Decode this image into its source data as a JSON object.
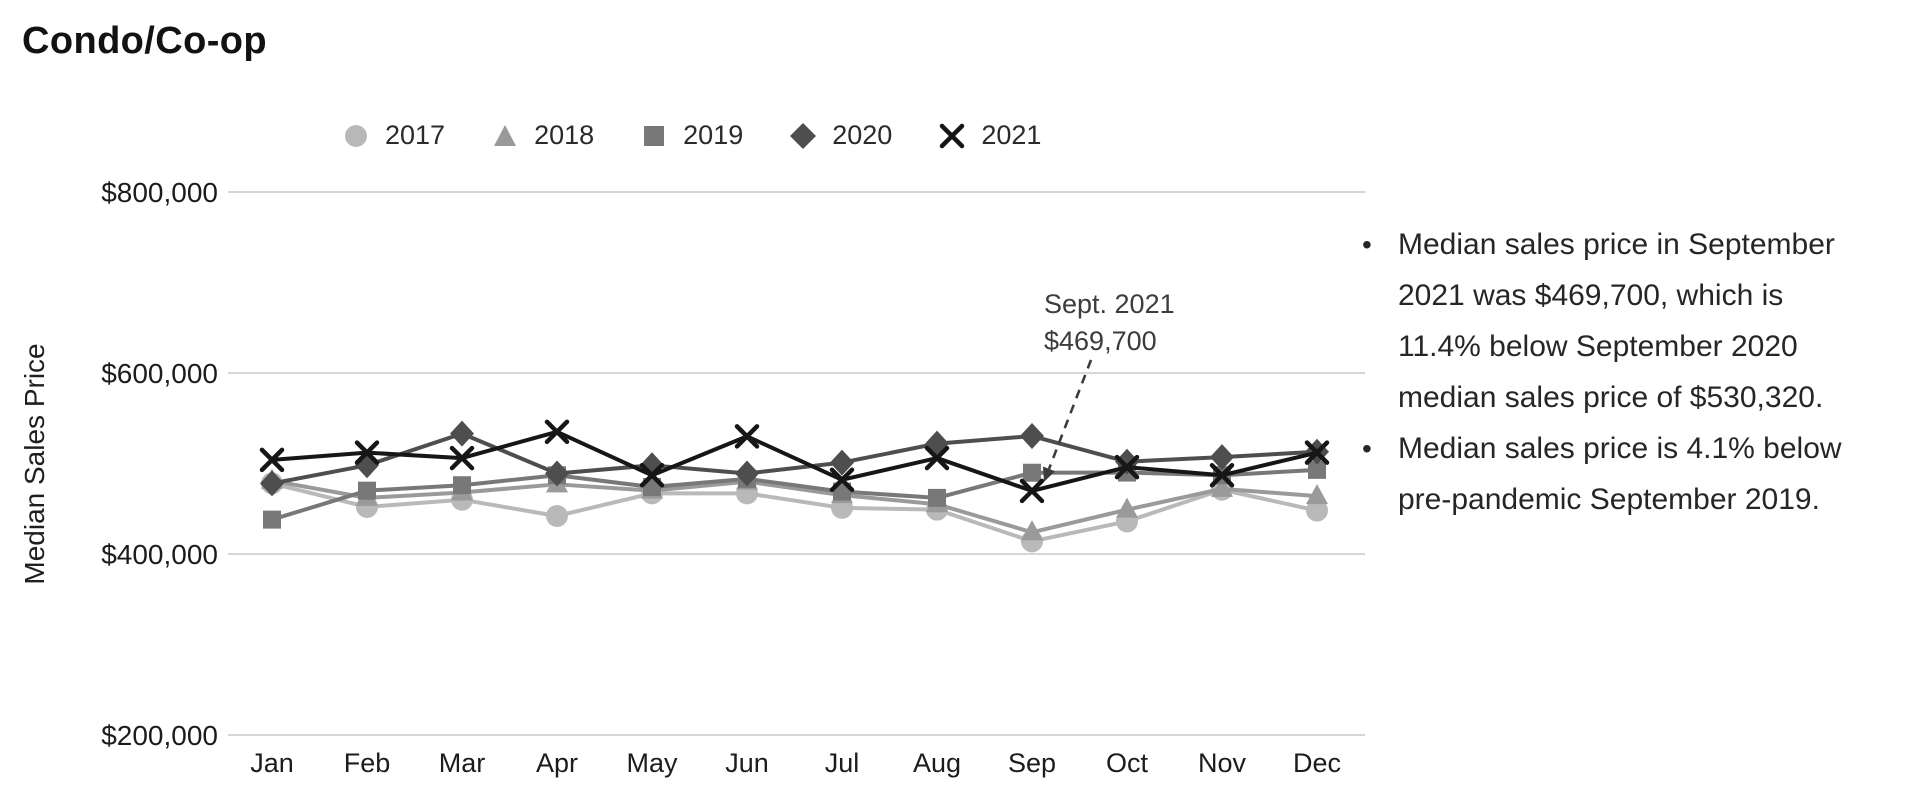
{
  "title": "Condo/Co-op",
  "legend": {
    "items": [
      {
        "label": "2017",
        "marker": "circle",
        "color": "#b9b9b9"
      },
      {
        "label": "2018",
        "marker": "triangle",
        "color": "#9a9a9a"
      },
      {
        "label": "2019",
        "marker": "square",
        "color": "#787878"
      },
      {
        "label": "2020",
        "marker": "diamond",
        "color": "#4e4e4e"
      },
      {
        "label": "2021",
        "marker": "x",
        "color": "#161616"
      }
    ]
  },
  "chart_data": {
    "type": "line",
    "title": "Condo/Co-op",
    "xlabel": "",
    "ylabel": "Median Sales Price",
    "x_categories": [
      "Jan",
      "Feb",
      "Mar",
      "Apr",
      "May",
      "Jun",
      "Jul",
      "Aug",
      "Sep",
      "Oct",
      "Nov",
      "Dec"
    ],
    "ylim": [
      200000,
      800000
    ],
    "grid": true,
    "legend_position": "top",
    "yticks": [
      {
        "value": 800000,
        "label": "$800,000"
      },
      {
        "value": 600000,
        "label": "$600,000"
      },
      {
        "value": 400000,
        "label": "$400,000"
      },
      {
        "value": 200000,
        "label": "$200,000"
      }
    ],
    "series": [
      {
        "name": "2017",
        "marker": "circle",
        "color": "#b9b9b9",
        "values": [
          478000,
          452000,
          460000,
          442000,
          467000,
          467000,
          451000,
          449000,
          414000,
          436000,
          471000,
          448000
        ]
      },
      {
        "name": "2018",
        "marker": "triangle",
        "color": "#9a9a9a",
        "values": [
          481000,
          462000,
          468000,
          477000,
          470000,
          480000,
          465000,
          455000,
          424000,
          449000,
          472000,
          464000
        ]
      },
      {
        "name": "2019",
        "marker": "square",
        "color": "#787878",
        "values": [
          438000,
          470000,
          476000,
          487000,
          474000,
          483000,
          469000,
          462000,
          489800,
          490000,
          487000,
          493000
        ]
      },
      {
        "name": "2020",
        "marker": "diamond",
        "color": "#4e4e4e",
        "values": [
          478000,
          498000,
          533000,
          489000,
          498000,
          489000,
          501000,
          522000,
          530320,
          502000,
          507000,
          513000
        ]
      },
      {
        "name": "2021",
        "marker": "x",
        "color": "#161616",
        "values": [
          504000,
          512000,
          506000,
          535000,
          487000,
          530000,
          482000,
          506000,
          469700,
          496000,
          487000,
          512000
        ]
      }
    ],
    "annotation": {
      "line1": "Sept. 2021",
      "line2": "$469,700",
      "target_series": "2021",
      "target_month": "Sep",
      "target_value": 469700
    }
  },
  "notes": {
    "bullet_glyph": "•",
    "bullets": [
      {
        "text": "Median sales price in September\n2021 was $469,700, which is\n11.4% below September 2020\nmedian sales price of $530,320."
      },
      {
        "text": "Median sales price is 4.1% below\npre-pandemic September 2019."
      }
    ]
  }
}
